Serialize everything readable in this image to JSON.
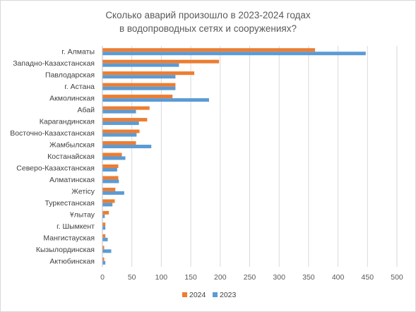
{
  "chart_data": {
    "type": "bar",
    "orientation": "horizontal",
    "title": "Сколько аварий произошло в 2023-2024 годах в водопроводных сетях и сооружениях?",
    "title_lines": [
      "Сколько аварий произошло в 2023-2024 годах",
      "в водопроводных сетях и сооружениях?"
    ],
    "categories": [
      "г. Алматы",
      "Западно-Казахстанская",
      "Павлодарская",
      "г. Астана",
      "Акмолинская",
      "Абай",
      "Карагандинская",
      "Восточно-Казахстанская",
      "Жамбылская",
      "Костанайская",
      "Северо-Казахстанская",
      "Алматинская",
      "Жетісу",
      "Туркестанская",
      "Ұлытау",
      "г. Шымкент",
      "Мангистауская",
      "Кызылординская",
      "Актюбинская"
    ],
    "series": [
      {
        "name": "2024",
        "color": "#ED7D31",
        "values": [
          361,
          198,
          156,
          124,
          119,
          80,
          76,
          63,
          57,
          33,
          27,
          27,
          22,
          21,
          11,
          5,
          5,
          3,
          3
        ]
      },
      {
        "name": "2023",
        "color": "#5B9BD5",
        "values": [
          447,
          130,
          124,
          124,
          181,
          57,
          62,
          58,
          83,
          39,
          25,
          28,
          37,
          17,
          4,
          5,
          9,
          15,
          5
        ]
      }
    ],
    "x_ticks": [
      "0",
      "50",
      "100",
      "150",
      "200",
      "250",
      "300",
      "350",
      "400",
      "450",
      "500"
    ],
    "xlim": [
      0,
      500
    ],
    "grid": "vertical",
    "legend": "bottom-center",
    "legend_labels": [
      "2024",
      "2023"
    ]
  }
}
